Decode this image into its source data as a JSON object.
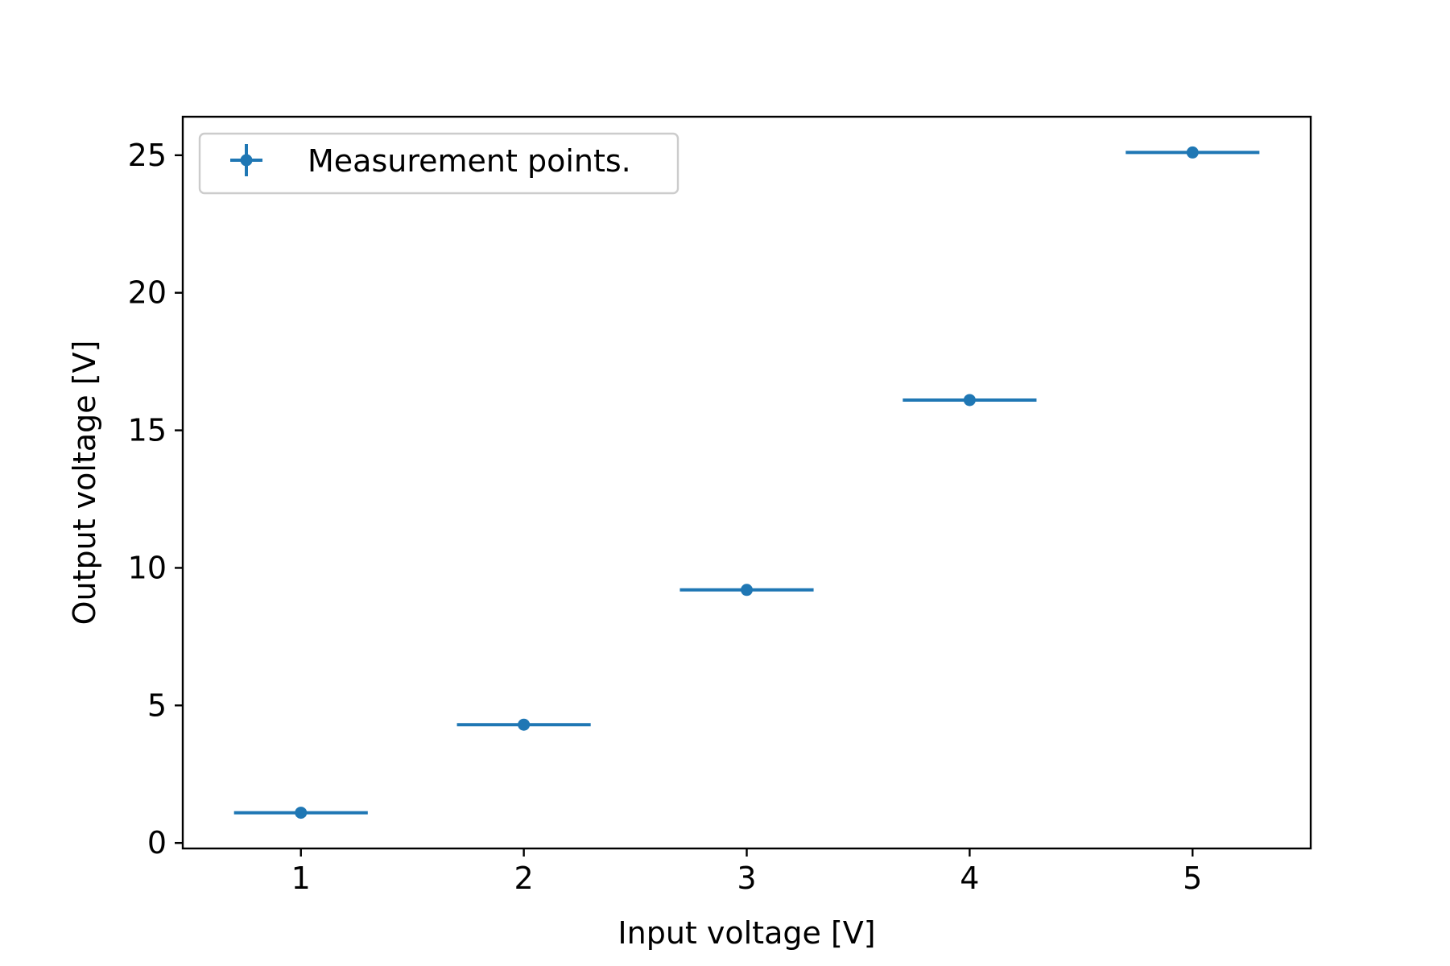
{
  "chart_data": {
    "type": "scatter",
    "title": "",
    "xlabel": "Input voltage [V]",
    "ylabel": "Output voltage [V]",
    "xlim": [
      0.47,
      5.53
    ],
    "ylim": [
      -0.2,
      26.4
    ],
    "xticks": [
      1,
      2,
      3,
      4,
      5
    ],
    "yticks": [
      0,
      5,
      10,
      15,
      20,
      25
    ],
    "xtick_labels": [
      "1",
      "2",
      "3",
      "4",
      "5"
    ],
    "ytick_labels": [
      "0",
      "5",
      "10",
      "15",
      "20",
      "25"
    ],
    "grid": false,
    "legend_position": "upper left",
    "series": [
      {
        "name": "Measurement points.",
        "color": "#1f77b4",
        "marker": "circle",
        "error_bars": "horizontal",
        "x": [
          1,
          2,
          3,
          4,
          5
        ],
        "y": [
          1.1,
          4.3,
          9.2,
          16.1,
          25.1
        ],
        "xerr": [
          0.3,
          0.3,
          0.3,
          0.3,
          0.3
        ],
        "yerr": [
          0,
          0,
          0,
          0,
          0
        ]
      }
    ]
  }
}
